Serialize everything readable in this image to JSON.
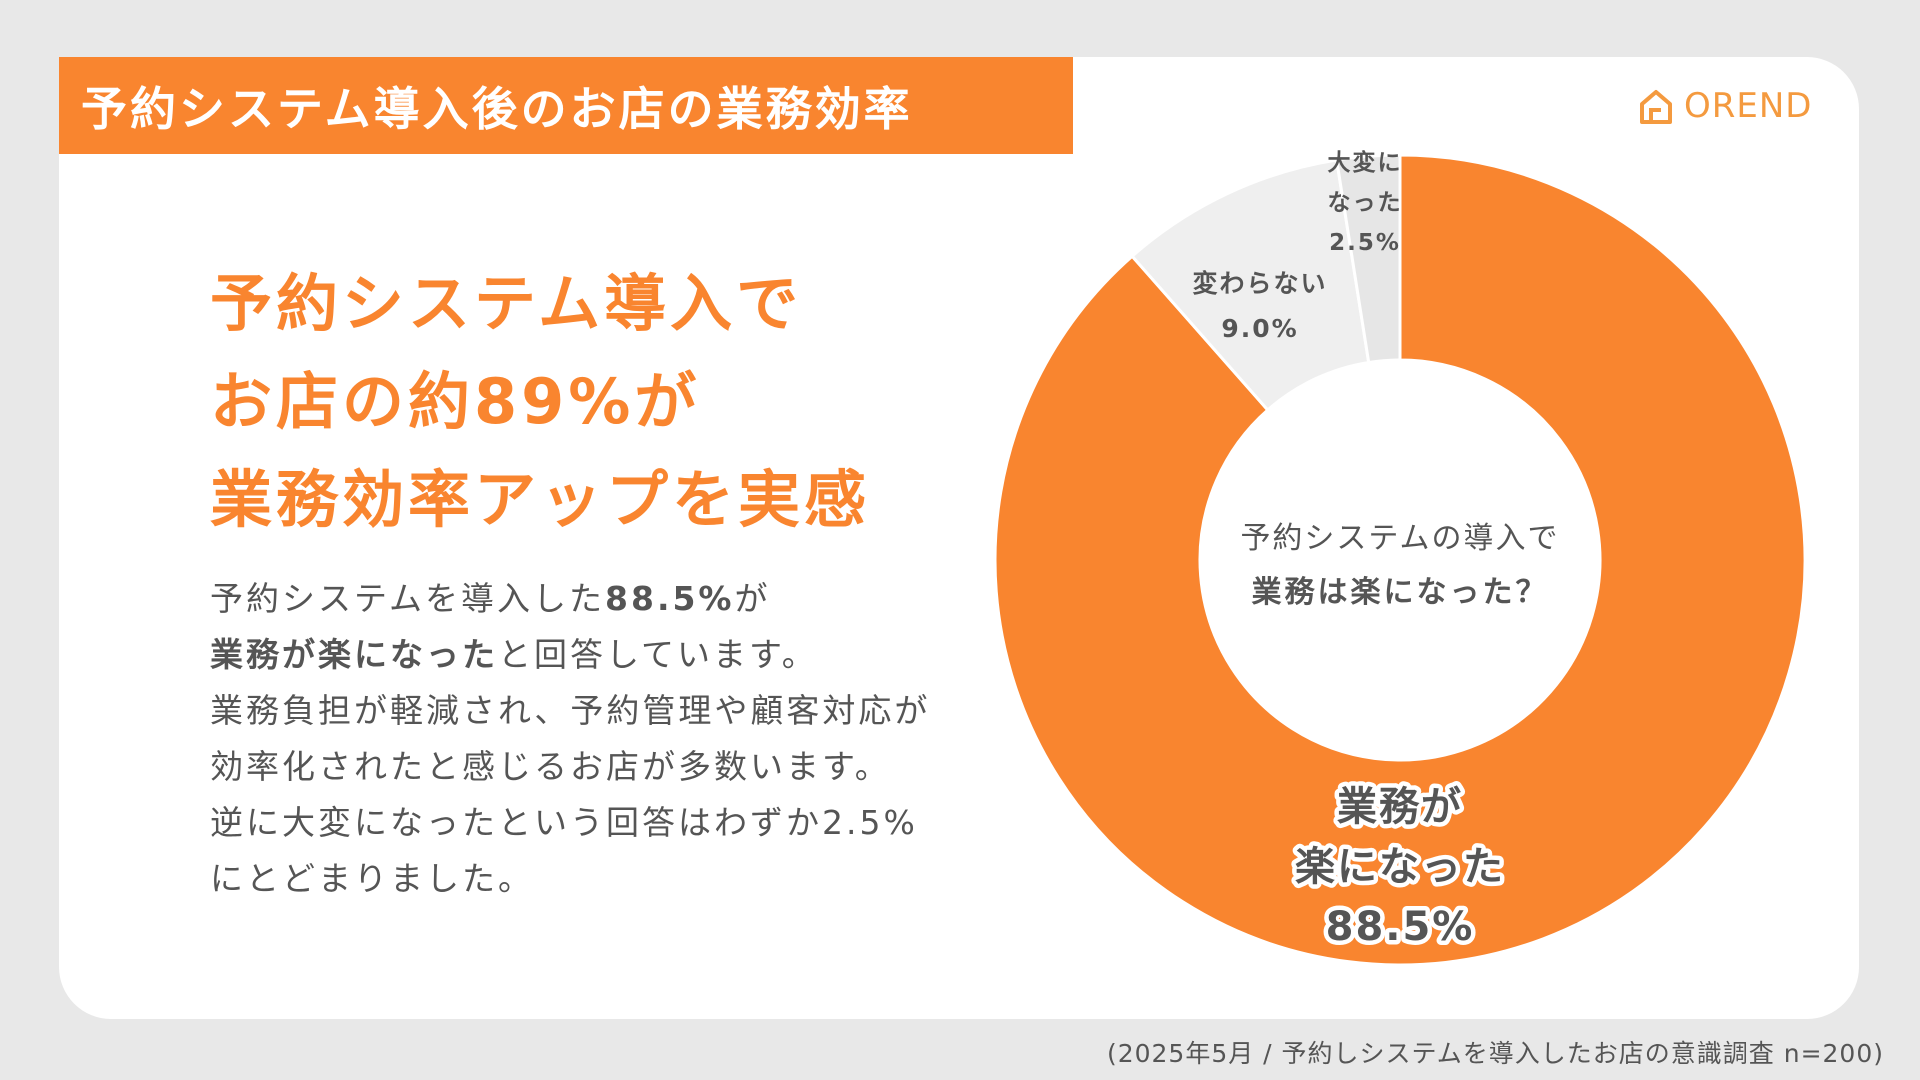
{
  "title": "予約システム導入後のお店の業務効率",
  "logo": {
    "text": "OREND",
    "icon": "house-logo-icon"
  },
  "headline": [
    "予約システム導入で",
    "お店の約89%が",
    "業務効率アップを実感"
  ],
  "body": {
    "line1_a": "予約システムを導入した",
    "line1_b": "88.5%",
    "line1_c": "が",
    "line2_a": "業務が楽になった",
    "line2_b": "と回答しています。",
    "line3": "業務負担が軽減され、予約管理や顧客対応が",
    "line4": "効率化されたと感じるお店が多数います。",
    "line5": "逆に大変になったという回答はわずか2.5%",
    "line6": "にとどまりました。"
  },
  "footnote": "(2025年5月 / 予約しシステムを導入したお店の意識調査 n=200)",
  "colors": {
    "accent": "#f9852f",
    "slice_light": "#efefef",
    "text": "#555555"
  },
  "chart_data": {
    "type": "pie",
    "donut": true,
    "center_label": [
      "予約システムの導入で",
      "業務は楽になった？"
    ],
    "slices": [
      {
        "label_lines": [
          "業務が",
          "楽になった"
        ],
        "value": 88.5,
        "value_label": "88.5%",
        "color": "#f9852f"
      },
      {
        "label_lines": [
          "変わらない"
        ],
        "value": 9.0,
        "value_label": "9.0%",
        "color": "#efefef"
      },
      {
        "label_lines": [
          "大変に",
          "なった"
        ],
        "value": 2.5,
        "value_label": "2.5%",
        "color": "#e6e6e6"
      }
    ]
  }
}
